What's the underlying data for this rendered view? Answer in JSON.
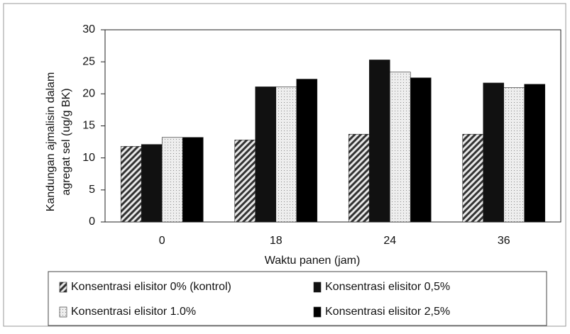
{
  "chart_data": {
    "type": "bar",
    "y_label": [
      "Kandungan ajmalisin dalam",
      "agregat sel (ug/g BK)"
    ],
    "x_label": "Waktu panen (jam)",
    "categories": [
      "0",
      "18",
      "24",
      "36"
    ],
    "series": [
      {
        "name": "Konsentrasi elisitor 0% (kontrol)",
        "color": "#8a8a8a",
        "pattern": "hatch",
        "values": [
          11.8,
          12.8,
          13.7,
          13.7
        ]
      },
      {
        "name": "Konsentrasi elisitor 0,5%",
        "color": "#111111",
        "pattern": "solid",
        "values": [
          12.1,
          21.1,
          25.3,
          21.7
        ]
      },
      {
        "name": "Konsentrasi elisitor 1.0%",
        "color": "#dcdcdc",
        "pattern": "dots",
        "values": [
          13.2,
          21.1,
          23.4,
          21.0
        ]
      },
      {
        "name": "Konsentrasi elisitor 2,5%",
        "color": "#000000",
        "pattern": "solid",
        "values": [
          13.2,
          22.3,
          22.5,
          21.5
        ]
      }
    ],
    "ylim": [
      0,
      30
    ],
    "yticks": [
      0,
      5,
      10,
      15,
      20,
      25,
      30
    ],
    "grid": false
  }
}
